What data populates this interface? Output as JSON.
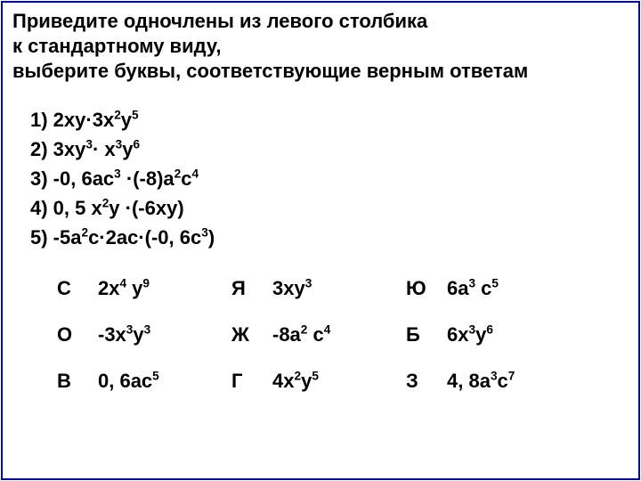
{
  "title": {
    "line1": "Приведите одночлены из левого столбика",
    "line2": " к стандартному виду,",
    "line3": "выберите буквы, соответствующие  верным ответам"
  },
  "problems": [
    {
      "n": "1)",
      "plain": "  2xy·3x",
      "s1": "2",
      "mid": "y",
      "s2": "5"
    },
    {
      "n": "2)",
      "plain": "  3xy",
      "s1": "3",
      "mid": "· x",
      "s2": "3",
      "y": "y",
      "s3": "6"
    },
    {
      "n": "3)",
      "plain": "  -0, 6ac",
      "s1": "3",
      "mid": " ·(-8)a",
      "s2": "2",
      "c": "c",
      "s3": "4"
    },
    {
      "n": "4)",
      "plain": "  0, 5 x",
      "s1": "2",
      "mid": "y ·(-6xy)"
    },
    {
      "n": "5)",
      "plain": " -5a",
      "s1": "2",
      "mid": "c·2ac·(-0, 6c",
      "s2": "3",
      "tail": ")"
    }
  ],
  "answers": [
    [
      {
        "letter": "С",
        "e": {
          "a": "2x",
          "s1": "4",
          "b": " y",
          "s2": "9"
        }
      },
      {
        "letter": "Я",
        "e": {
          "a": "3xy",
          "s1": "3"
        }
      },
      {
        "letter": "Ю",
        "e": {
          "a": "6a",
          "s1": "3",
          "b": " c",
          "s2": "5"
        }
      }
    ],
    [
      {
        "letter": "О",
        "e": {
          "a": "-3x",
          "s1": "3",
          "b": "y",
          "s2": "3"
        }
      },
      {
        "letter": "Ж",
        "e": {
          "a": "-8a",
          "s1": "2",
          "b": " c",
          "s2": "4"
        }
      },
      {
        "letter": "Б",
        "e": {
          "a": "6x",
          "s1": "3",
          "b": "y",
          "s2": "6"
        }
      }
    ],
    [
      {
        "letter": "В",
        "e": {
          "a": "0, 6ac",
          "s1": "5"
        }
      },
      {
        "letter": "Г",
        "e": {
          "a": "4x",
          "s1": "2",
          "b": "y",
          "s2": "5"
        }
      },
      {
        "letter": "З",
        "e": {
          "a": "4, 8a",
          "s1": "3",
          "b": "c",
          "s2": "7"
        }
      }
    ]
  ],
  "colors": {
    "border": "#000080",
    "text": "#000000",
    "background": "#ffffff"
  },
  "fontsize_pt": 17
}
